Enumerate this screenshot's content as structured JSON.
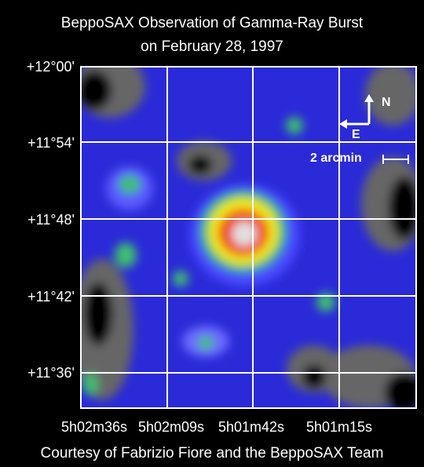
{
  "header": {
    "title": [
      "BeppoSAX Observation of Gamma-Ray Burst",
      "on February 28, 1997"
    ]
  },
  "image": {
    "dec_labels": [
      "+12°00'",
      "+11°54'",
      "+11°48'",
      "+11°42'",
      "+11°36'"
    ],
    "ra_labels": [
      "5h02m36s",
      "5h02m09s",
      "5h01m42s",
      "5h01m15s"
    ],
    "compass": {
      "north": "N",
      "east": "E"
    },
    "scale_bar": "2 arcmin"
  },
  "footer": {
    "credit": "Courtesy of Fabrizio Fiore and the BeppoSAX Team"
  }
}
